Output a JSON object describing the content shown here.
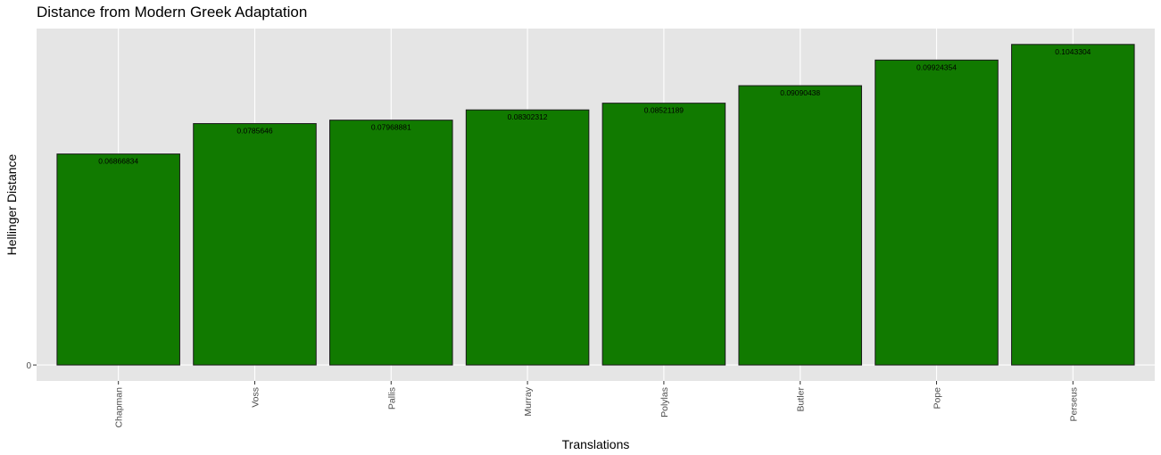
{
  "chart_data": {
    "type": "bar",
    "title": "Distance from Modern Greek Adaptation",
    "xlabel": "Translations",
    "ylabel": "Hellinger Distance",
    "categories": [
      "Chapman",
      "Voss",
      "Pallis",
      "Murray",
      "Polylas",
      "Butler",
      "Pope",
      "Perseus"
    ],
    "values": [
      0.06866834,
      0.0785646,
      0.07968881,
      0.08302312,
      0.08521189,
      0.09090438,
      0.09924354,
      0.1043304
    ],
    "value_labels": [
      "0.06866834",
      "0.0785646",
      "0.07968881",
      "0.08302312",
      "0.08521189",
      "0.09090438",
      "0.09924354",
      "0.1043304"
    ],
    "y_ticks": [
      0
    ],
    "y_tick_labels": [
      "0"
    ],
    "ylim": [
      -0.0052,
      0.1095
    ],
    "grid": true,
    "legend": "none",
    "colors": {
      "bar_fill": "#117a00",
      "bar_stroke": "#1a1a1a",
      "panel_background": "#e5e5e5",
      "grid_line": "#ffffff",
      "label_text": "#000000",
      "tick_text": "#4d4d4d"
    }
  }
}
